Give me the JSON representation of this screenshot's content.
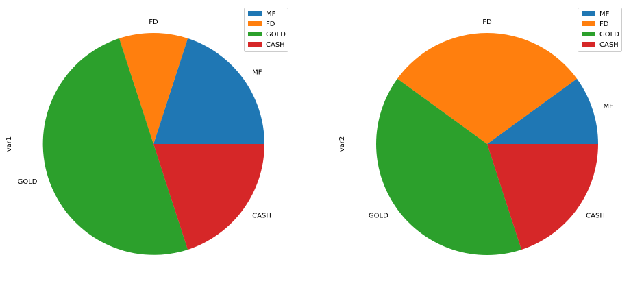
{
  "chart_data": [
    {
      "type": "pie",
      "title": "",
      "ylabel": "var1",
      "categories": [
        "MF",
        "FD",
        "GOLD",
        "CASH"
      ],
      "values": [
        20,
        10,
        50,
        20
      ],
      "colors": [
        "#1f77b4",
        "#ff7f0e",
        "#2ca02c",
        "#d62728"
      ],
      "start_angle_deg": 0,
      "direction": "counterclockwise",
      "legend": {
        "placement": "top-right",
        "entries": [
          "MF",
          "FD",
          "GOLD",
          "CASH"
        ]
      }
    },
    {
      "type": "pie",
      "title": "",
      "ylabel": "var2",
      "categories": [
        "MF",
        "FD",
        "GOLD",
        "CASH"
      ],
      "values": [
        10,
        30,
        40,
        20
      ],
      "colors": [
        "#1f77b4",
        "#ff7f0e",
        "#2ca02c",
        "#d62728"
      ],
      "start_angle_deg": 0,
      "direction": "counterclockwise",
      "legend": {
        "placement": "top-right",
        "entries": [
          "MF",
          "FD",
          "GOLD",
          "CASH"
        ]
      }
    }
  ]
}
